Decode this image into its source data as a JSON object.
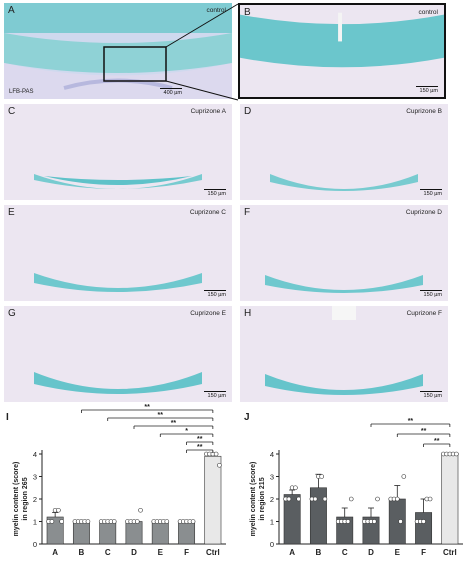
{
  "panels": [
    {
      "id": "A",
      "title": "control",
      "scale": "400 µm",
      "stain": "LFB-PAS"
    },
    {
      "id": "B",
      "title": "control",
      "scale": "150 µm"
    },
    {
      "id": "C",
      "title": "Cuprizone A",
      "scale": "150 µm"
    },
    {
      "id": "D",
      "title": "Cuprizone B",
      "scale": "150 µm"
    },
    {
      "id": "E",
      "title": "Cuprizone C",
      "scale": "150 µm"
    },
    {
      "id": "F",
      "title": "Cuprizone D",
      "scale": "150 µm"
    },
    {
      "id": "G",
      "title": "Cuprizone E",
      "scale": "150 µm"
    },
    {
      "id": "H",
      "title": "Cuprizone F",
      "scale": "150 µm"
    }
  ],
  "colors": {
    "tissue": "#ece6f1",
    "myelin": "#5fc2c9",
    "bar_dark": "#5a5e61",
    "bar_light": "#c9cdcf",
    "bar_ctrl": "#e8e8e8"
  },
  "chart_data": [
    {
      "label": "I",
      "type": "bar",
      "categories": [
        "A",
        "B",
        "C",
        "D",
        "E",
        "F",
        "Ctrl"
      ],
      "values": [
        1.2,
        1.0,
        1.0,
        1.0,
        1.0,
        1.0,
        3.9
      ],
      "errors": [
        0.2,
        0.0,
        0.0,
        0.0,
        0.0,
        0.0,
        0.1
      ],
      "points": [
        [
          1,
          1,
          1.5,
          1.5,
          1
        ],
        [
          1,
          1,
          1,
          1,
          1
        ],
        [
          1,
          1,
          1,
          1,
          1
        ],
        [
          1,
          1,
          1,
          1,
          1.5
        ],
        [
          1,
          1,
          1,
          1,
          1
        ],
        [
          1,
          1,
          1,
          1,
          1
        ],
        [
          4,
          4,
          4,
          4,
          3.5
        ]
      ],
      "ylabel": "myelin content (score) in region 265",
      "ylim": [
        0,
        4
      ],
      "yticks": [
        "0",
        "1",
        "2",
        "3",
        "4"
      ],
      "significance": [
        "**",
        "**",
        "**",
        "*",
        "**",
        "**"
      ]
    },
    {
      "label": "J",
      "type": "bar",
      "categories": [
        "A",
        "B",
        "C",
        "D",
        "E",
        "F",
        "Ctrl"
      ],
      "values": [
        2.2,
        2.5,
        1.2,
        1.2,
        2.0,
        1.4,
        4.0
      ],
      "errors": [
        0.2,
        0.6,
        0.4,
        0.4,
        0.6,
        0.6,
        0.0
      ],
      "points": [
        [
          2,
          2,
          2.5,
          2.5,
          2
        ],
        [
          2,
          2,
          3,
          3,
          2
        ],
        [
          1,
          1,
          1,
          1,
          2
        ],
        [
          1,
          1,
          1,
          1,
          2
        ],
        [
          2,
          2,
          2,
          1,
          3
        ],
        [
          1,
          1,
          1,
          2,
          2
        ],
        [
          4,
          4,
          4,
          4,
          4
        ]
      ],
      "ylabel": "myelin content (score) in region 215",
      "ylim": [
        0,
        4
      ],
      "yticks": [
        "0",
        "1",
        "2",
        "3",
        "4"
      ],
      "significance": [
        "**",
        "**",
        "**"
      ]
    }
  ]
}
